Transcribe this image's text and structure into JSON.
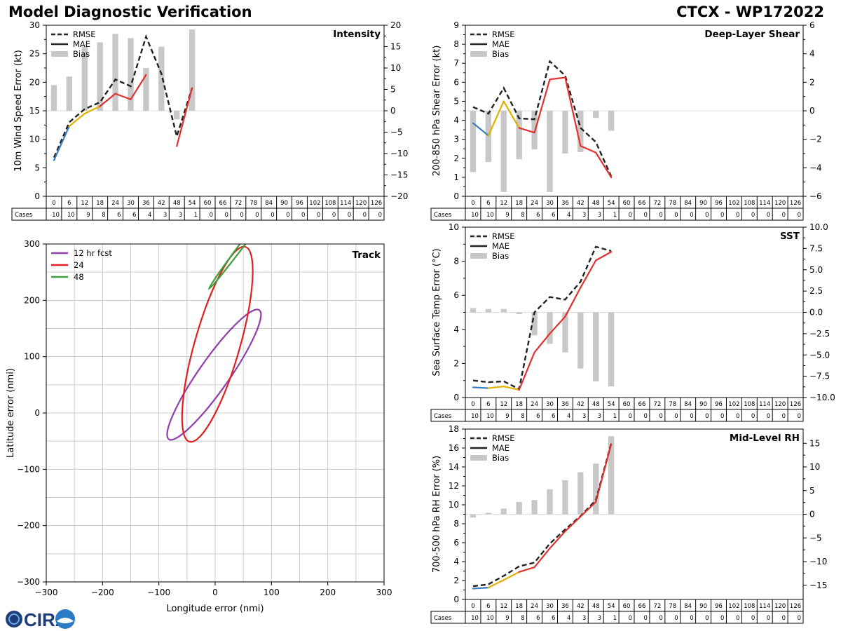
{
  "header": {
    "title_left": "Model Diagnostic Verification",
    "title_right": "CTCX - WP172022"
  },
  "logo": {
    "text": "CIRA"
  },
  "table": {
    "cases_label": "Cases",
    "hours": [
      0,
      6,
      12,
      18,
      24,
      30,
      36,
      42,
      48,
      54,
      60,
      66,
      72,
      78,
      84,
      90,
      96,
      102,
      108,
      114,
      120,
      126
    ],
    "cases": [
      10,
      10,
      9,
      8,
      6,
      6,
      4,
      3,
      3,
      1,
      0,
      0,
      0,
      0,
      0,
      0,
      0,
      0,
      0,
      0,
      0,
      0
    ]
  },
  "legend_labels": {
    "rmse": "RMSE",
    "mae": "MAE",
    "bias": "Bias"
  },
  "colors": {
    "rmse": "#222222",
    "bias": "#c8c8c8",
    "seg1": "#3a7fc0",
    "seg2": "#e0b000",
    "seg3": "#e03030",
    "track_12": "#9040a8",
    "track_24": "#e02020",
    "track_48": "#40a040",
    "grid": "#cccccc"
  },
  "chart_data": [
    {
      "id": "intensity",
      "type": "line",
      "title": "Intensity",
      "ylabel": "10m Wind Speed Error (kt)",
      "ylim": [
        0,
        30
      ],
      "yticks": [
        0,
        5,
        10,
        15,
        20,
        25,
        30
      ],
      "y2lim": [
        -20,
        20
      ],
      "y2ticks": [
        -20,
        -15,
        -10,
        -5,
        0,
        5,
        10,
        15,
        20
      ],
      "x": [
        0,
        6,
        12,
        18,
        24,
        30,
        36,
        42,
        48,
        54
      ],
      "rmse": [
        6.8,
        13.0,
        15.3,
        16.5,
        20.5,
        19.3,
        28.0,
        21.5,
        10.5,
        19.0
      ],
      "mae": [
        6.3,
        12.3,
        14.5,
        15.8,
        18.0,
        17.0,
        21.3,
        null,
        8.8,
        19.0
      ],
      "bias": [
        6.0,
        8.0,
        15.0,
        16.0,
        18.0,
        17.0,
        10.0,
        15.0,
        -2.0,
        19.0
      ]
    },
    {
      "id": "shear",
      "type": "line",
      "title": "Deep-Layer Shear",
      "ylabel": "200-850 hPa Shear Error (kt)",
      "ylim": [
        0,
        9
      ],
      "yticks": [
        0,
        1,
        2,
        3,
        4,
        5,
        6,
        7,
        8,
        9
      ],
      "y2lim": [
        -6,
        6
      ],
      "y2ticks": [
        -6,
        -4,
        -2,
        0,
        2,
        4,
        6
      ],
      "x": [
        0,
        6,
        12,
        18,
        24,
        30,
        36,
        42,
        48,
        54
      ],
      "rmse": [
        4.7,
        4.35,
        5.7,
        4.1,
        4.05,
        7.1,
        6.35,
        3.6,
        2.85,
        1.05
      ],
      "mae": [
        3.85,
        3.2,
        5.0,
        3.6,
        3.35,
        6.15,
        6.25,
        2.65,
        2.3,
        1.0
      ],
      "bias": [
        -4.3,
        -3.6,
        -5.7,
        -3.4,
        -2.7,
        -5.7,
        -3.0,
        -2.9,
        -0.5,
        -1.4
      ]
    },
    {
      "id": "sst",
      "type": "line",
      "title": "SST",
      "ylabel": "Sea Surface Temp Error (°C)",
      "ylim": [
        0,
        10
      ],
      "yticks": [
        0,
        2,
        4,
        6,
        8,
        10
      ],
      "y2lim": [
        -10,
        10
      ],
      "y2ticks": [
        -10.0,
        -7.5,
        -5.0,
        -2.5,
        0.0,
        2.5,
        5.0,
        7.5,
        10.0
      ],
      "x": [
        0,
        6,
        12,
        18,
        24,
        30,
        36,
        42,
        48,
        54
      ],
      "rmse": [
        1.0,
        0.9,
        0.95,
        0.5,
        5.0,
        5.9,
        5.75,
        6.8,
        8.85,
        8.6
      ],
      "mae": [
        0.6,
        0.55,
        0.65,
        0.45,
        2.65,
        3.75,
        4.75,
        6.45,
        8.05,
        8.55
      ],
      "bias": [
        0.5,
        0.4,
        0.4,
        -0.2,
        -2.7,
        -3.7,
        -4.7,
        -6.6,
        -8.1,
        -8.7
      ]
    },
    {
      "id": "rh",
      "type": "line",
      "title": "Mid-Level RH",
      "ylabel": "700-500 hPa RH Error (%)",
      "ylim": [
        0,
        18
      ],
      "yticks": [
        0,
        2,
        4,
        6,
        8,
        10,
        12,
        14,
        16,
        18
      ],
      "y2lim": [
        -18,
        18
      ],
      "y2ticks": [
        -15,
        -10,
        -5,
        0,
        5,
        10,
        15
      ],
      "x": [
        0,
        6,
        12,
        18,
        24,
        30,
        36,
        42,
        48,
        54
      ],
      "rmse": [
        1.4,
        1.6,
        2.5,
        3.5,
        3.9,
        5.9,
        7.4,
        8.8,
        10.5,
        16.5
      ],
      "mae": [
        1.15,
        1.25,
        2.05,
        2.9,
        3.4,
        5.4,
        7.2,
        8.75,
        10.3,
        16.4
      ],
      "bias": [
        -0.7,
        0.3,
        1.2,
        2.6,
        3.0,
        5.3,
        7.2,
        8.9,
        10.7,
        16.5
      ]
    },
    {
      "id": "track",
      "type": "scatter",
      "title": "Track",
      "xlabel": "Longitude error (nmi)",
      "ylabel": "Latitude error (nmi)",
      "xlim": [
        -300,
        300
      ],
      "ylim": [
        -300,
        300
      ],
      "ticks": [
        -300,
        -200,
        -100,
        0,
        100,
        200,
        300
      ],
      "gridlines": [
        -250,
        -200,
        -150,
        -100,
        -50,
        0,
        50,
        100,
        150,
        200,
        250
      ],
      "legend": [
        "12 hr fcst",
        "24",
        "48"
      ],
      "ellipses": [
        {
          "name": "12 hr fcst",
          "cx": -2,
          "cy": 68,
          "a": 140,
          "b": 27,
          "angle": 55,
          "color": "#9040a8"
        },
        {
          "name": "24",
          "cx": 4,
          "cy": 122,
          "a": 180,
          "b": 40,
          "angle": 74,
          "color": "#e02020"
        },
        {
          "name": "48",
          "cx": 58,
          "cy": 312,
          "a": 115,
          "b": 4,
          "angle": 53,
          "color": "#40a040"
        }
      ]
    }
  ]
}
